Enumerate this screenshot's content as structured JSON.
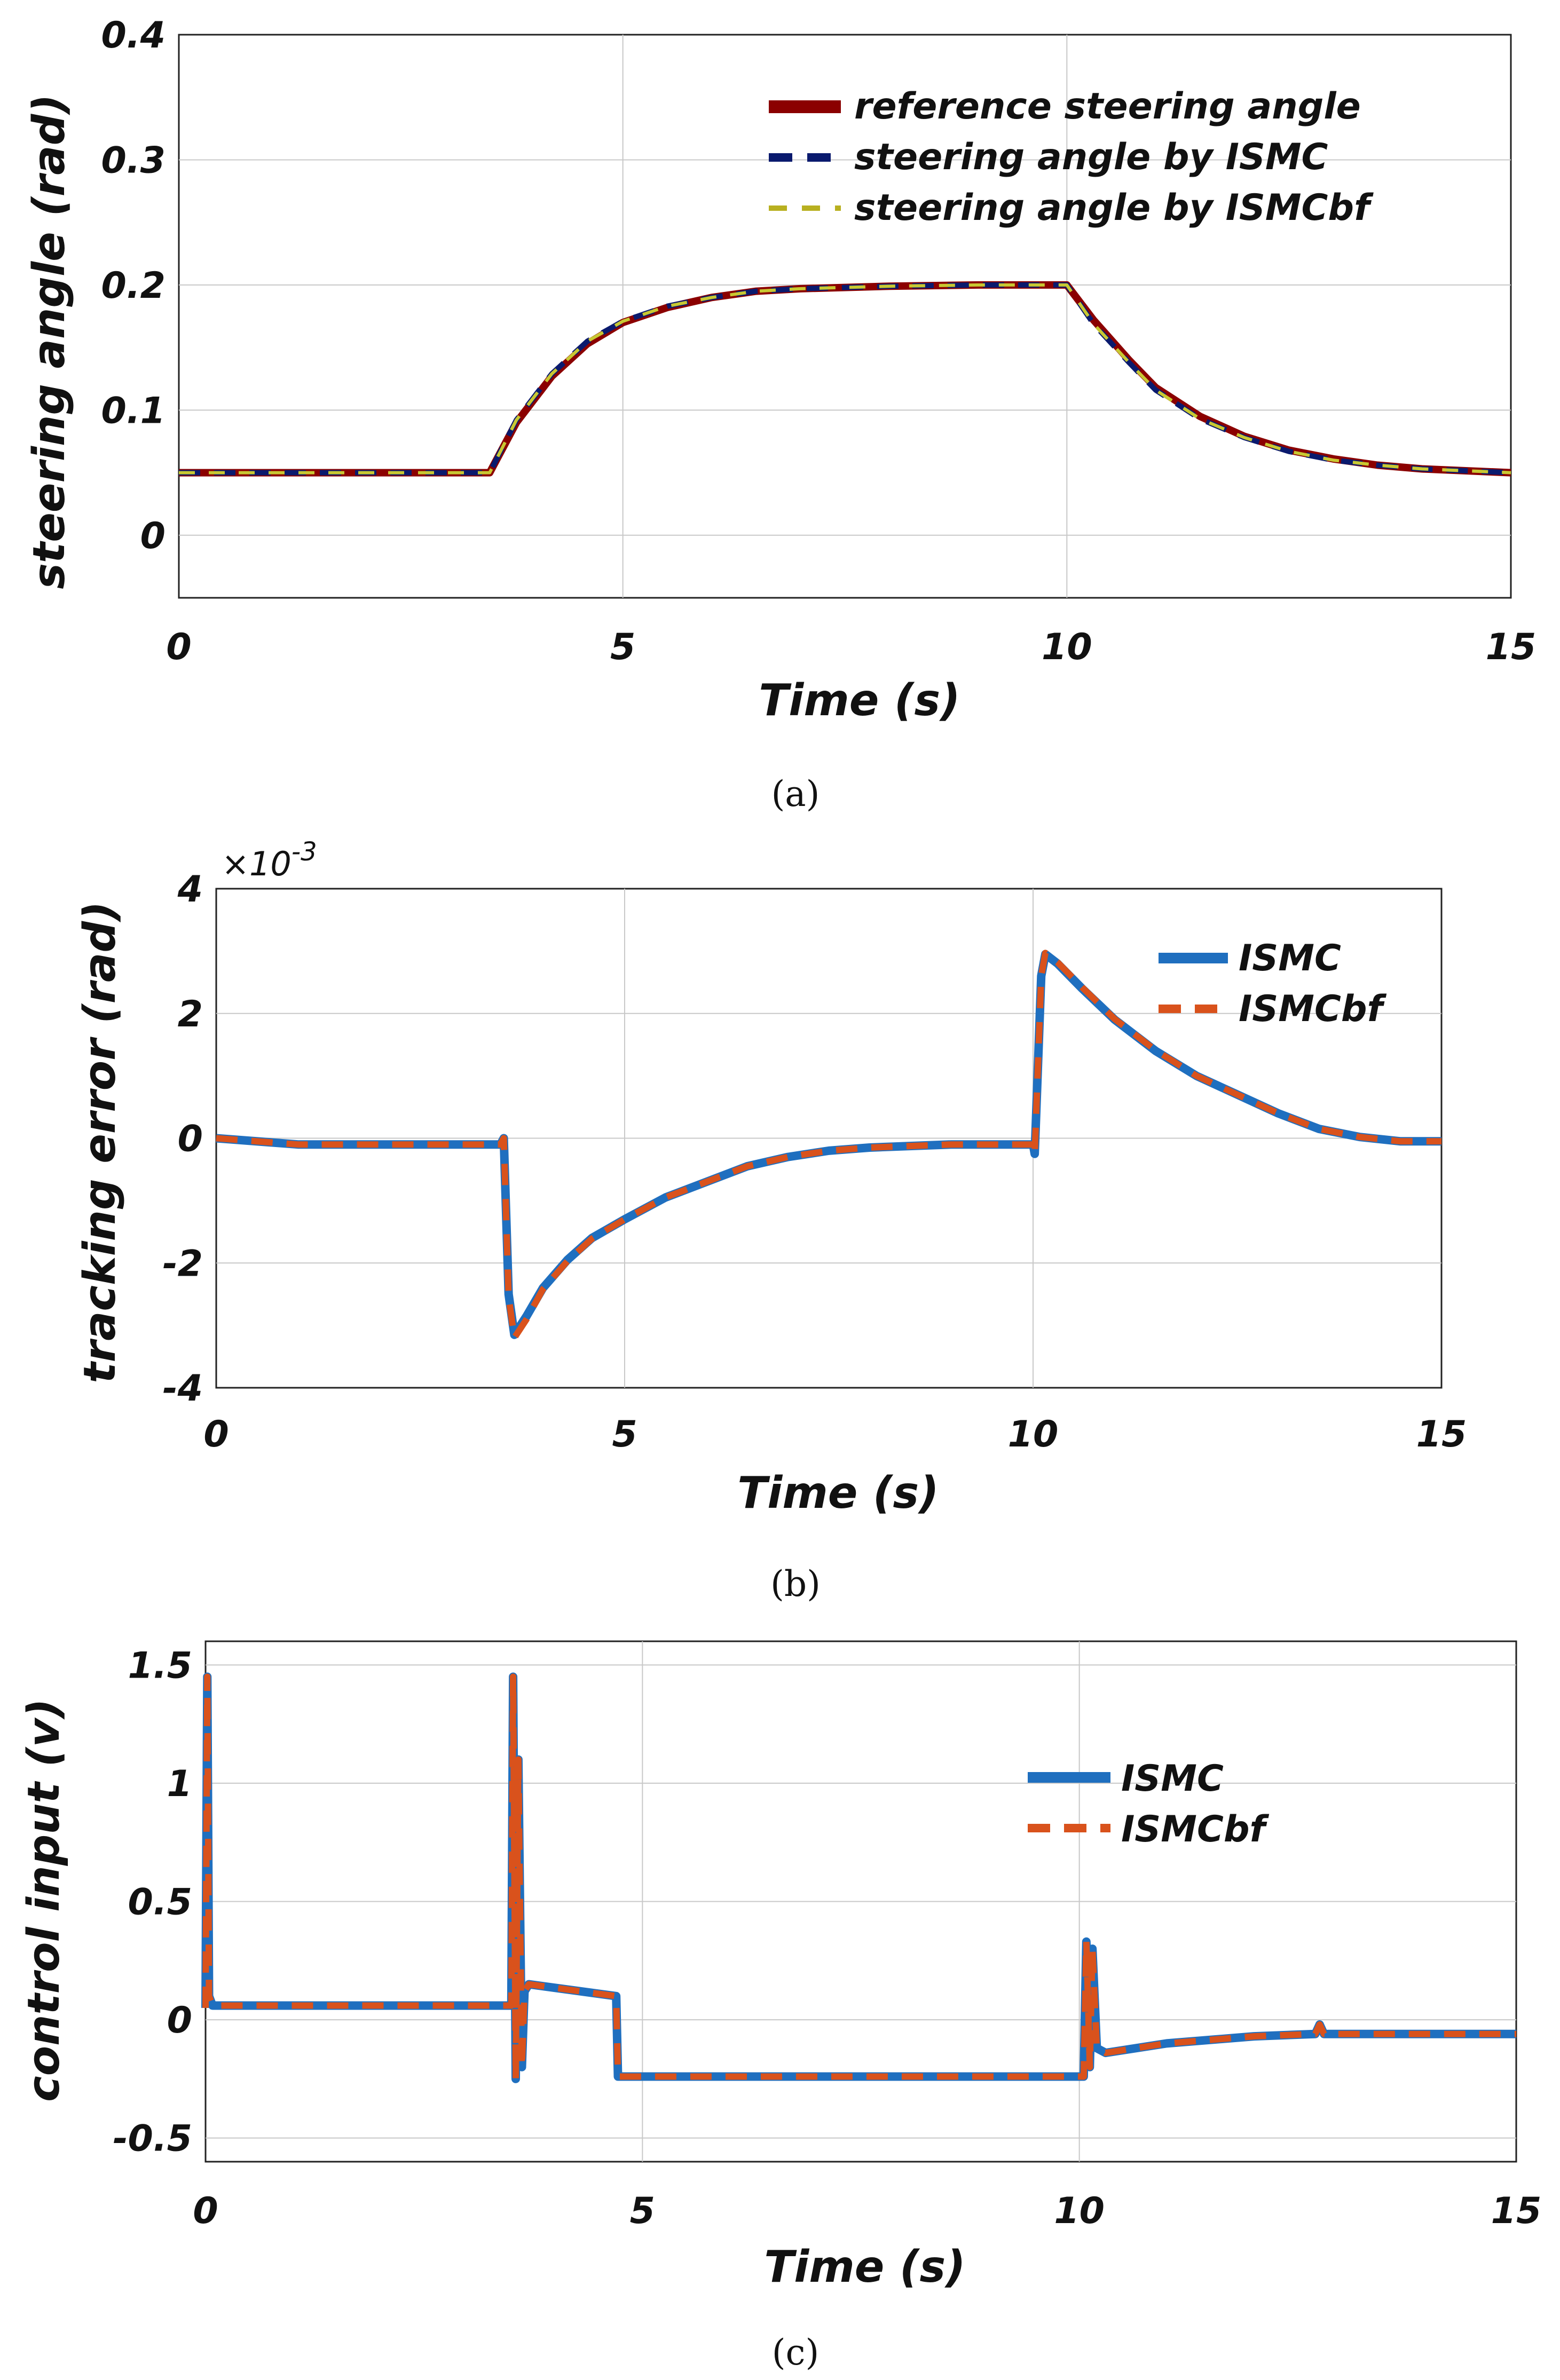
{
  "chart_data": [
    {
      "id": "a",
      "type": "line",
      "caption": "(a)",
      "xlabel": "Time (s)",
      "ylabel": "steering angle (rad)",
      "xlim": [
        0,
        15
      ],
      "ylim": [
        -0.05,
        0.4
      ],
      "xticks": [
        0,
        5,
        10,
        15
      ],
      "yticks": [
        0,
        0.1,
        0.2,
        0.3,
        0.4
      ],
      "yticklabels": [
        "0",
        "0.1",
        "0.2",
        "0.3",
        "0.4"
      ],
      "grid": true,
      "legend_position": "top-right",
      "series": [
        {
          "name": "reference steering angle",
          "color": "#8b0000",
          "style": "solid",
          "x": [
            0,
            3.5,
            3.8,
            4.2,
            4.6,
            5,
            5.5,
            6,
            6.5,
            7,
            8,
            9,
            10,
            10.3,
            10.7,
            11,
            11.5,
            12,
            12.5,
            13,
            13.5,
            14,
            15
          ],
          "y": [
            0.05,
            0.05,
            0.09,
            0.127,
            0.153,
            0.17,
            0.182,
            0.19,
            0.195,
            0.197,
            0.199,
            0.2,
            0.2,
            0.172,
            0.14,
            0.118,
            0.095,
            0.079,
            0.068,
            0.061,
            0.056,
            0.053,
            0.05
          ]
        },
        {
          "name": "steering angle by ISMC",
          "color": "#0a1a6e",
          "style": "dash",
          "x": [
            0,
            3.5,
            3.8,
            4.2,
            4.6,
            5,
            5.5,
            6,
            6.5,
            7,
            8,
            9,
            10,
            10.3,
            10.7,
            11,
            11.5,
            12,
            12.5,
            13,
            13.5,
            14,
            15
          ],
          "y": [
            0.05,
            0.05,
            0.092,
            0.129,
            0.155,
            0.171,
            0.183,
            0.19,
            0.195,
            0.197,
            0.199,
            0.2,
            0.2,
            0.169,
            0.138,
            0.116,
            0.093,
            0.078,
            0.067,
            0.06,
            0.056,
            0.053,
            0.05
          ]
        },
        {
          "name": "steering angle by ISMCbf",
          "color": "#c8c832",
          "style": "dash",
          "x": [
            0,
            3.5,
            3.8,
            4.2,
            4.6,
            5,
            5.5,
            6,
            6.5,
            7,
            8,
            9,
            10,
            10.3,
            10.7,
            11,
            11.5,
            12,
            12.5,
            13,
            13.5,
            14,
            15
          ],
          "y": [
            0.05,
            0.05,
            0.092,
            0.129,
            0.155,
            0.171,
            0.183,
            0.19,
            0.195,
            0.197,
            0.199,
            0.2,
            0.2,
            0.169,
            0.138,
            0.116,
            0.093,
            0.078,
            0.067,
            0.06,
            0.056,
            0.053,
            0.05
          ]
        }
      ]
    },
    {
      "id": "b",
      "type": "line",
      "caption": "(b)",
      "xlabel": "Time (s)",
      "ylabel": "tracking error (rad)",
      "scale_label": "×10",
      "scale_exponent": "-3",
      "xlim": [
        0,
        15
      ],
      "ylim": [
        -4,
        4
      ],
      "xticks": [
        0,
        5,
        10,
        15
      ],
      "yticks": [
        -4,
        -2,
        0,
        2,
        4
      ],
      "yticklabels": [
        "-4",
        "-2",
        "0",
        "2",
        "4"
      ],
      "grid": true,
      "legend_position": "top-right",
      "series": [
        {
          "name": "ISMC",
          "color": "#1f6fbf",
          "style": "solid",
          "x": [
            0,
            1,
            3.48,
            3.52,
            3.58,
            3.65,
            3.8,
            4.0,
            4.3,
            4.6,
            5,
            5.5,
            6,
            6.5,
            7,
            7.5,
            8,
            9,
            10.0,
            10.02,
            10.1,
            10.15,
            10.3,
            10.6,
            11,
            11.5,
            12,
            12.5,
            13,
            13.5,
            14,
            14.5,
            15
          ],
          "y": [
            0,
            -0.1,
            -0.1,
            0.0,
            -2.5,
            -3.15,
            -2.85,
            -2.4,
            -1.95,
            -1.6,
            -1.3,
            -0.95,
            -0.7,
            -0.45,
            -0.3,
            -0.2,
            -0.15,
            -0.1,
            -0.1,
            -0.25,
            2.6,
            2.95,
            2.8,
            2.4,
            1.9,
            1.4,
            1.0,
            0.7,
            0.4,
            0.15,
            0.02,
            -0.05,
            -0.05
          ]
        },
        {
          "name": "ISMCbf",
          "color": "#d9521c",
          "style": "dash",
          "x": [
            0,
            1,
            3.48,
            3.52,
            3.58,
            3.65,
            3.8,
            4.0,
            4.3,
            4.6,
            5,
            5.5,
            6,
            6.5,
            7,
            7.5,
            8,
            9,
            10.0,
            10.02,
            10.1,
            10.15,
            10.3,
            10.6,
            11,
            11.5,
            12,
            12.5,
            13,
            13.5,
            14,
            14.5,
            15
          ],
          "y": [
            0,
            -0.1,
            -0.1,
            0.0,
            -2.55,
            -3.2,
            -2.9,
            -2.42,
            -1.97,
            -1.61,
            -1.3,
            -0.95,
            -0.7,
            -0.45,
            -0.3,
            -0.2,
            -0.15,
            -0.1,
            -0.1,
            -0.25,
            2.6,
            2.97,
            2.82,
            2.42,
            1.91,
            1.41,
            1.0,
            0.7,
            0.4,
            0.15,
            0.02,
            -0.05,
            -0.05
          ]
        }
      ]
    },
    {
      "id": "c",
      "type": "line",
      "caption": "(c)",
      "xlabel": "Time (s)",
      "ylabel": "control input (v)",
      "xlim": [
        0,
        15
      ],
      "ylim": [
        -0.6,
        1.6
      ],
      "xticks": [
        0,
        5,
        10,
        15
      ],
      "yticks": [
        -0.5,
        0,
        0.5,
        1,
        1.5
      ],
      "yticklabels": [
        "-0.5",
        "0",
        "0.5",
        "1",
        "1.5"
      ],
      "grid": true,
      "legend_position": "center-right",
      "series": [
        {
          "name": "ISMC",
          "color": "#1f6fbf",
          "style": "solid",
          "x": [
            0,
            0.02,
            0.04,
            0.08,
            3.5,
            3.52,
            3.55,
            3.58,
            3.62,
            3.65,
            3.7,
            4.7,
            4.72,
            10.05,
            10.08,
            10.12,
            10.15,
            10.2,
            10.3,
            11,
            12,
            12.7,
            12.75,
            12.8,
            15
          ],
          "x_note": "",
          "y": [
            0.05,
            1.45,
            0.1,
            0.06,
            0.06,
            1.45,
            -0.25,
            1.1,
            -0.2,
            0.12,
            0.15,
            0.1,
            -0.24,
            -0.24,
            0.33,
            -0.2,
            0.3,
            -0.12,
            -0.14,
            -0.1,
            -0.07,
            -0.06,
            -0.02,
            -0.06,
            -0.06
          ]
        },
        {
          "name": "ISMCbf",
          "color": "#d9521c",
          "style": "dash",
          "x": [
            0,
            0.02,
            0.04,
            0.08,
            3.5,
            3.52,
            3.55,
            3.58,
            3.62,
            3.65,
            3.7,
            4.7,
            4.72,
            10.05,
            10.08,
            10.12,
            10.15,
            10.2,
            10.3,
            11,
            12,
            12.7,
            12.75,
            12.8,
            15
          ],
          "y": [
            0.05,
            1.45,
            0.1,
            0.06,
            0.06,
            1.45,
            -0.25,
            1.1,
            -0.2,
            0.12,
            0.15,
            0.1,
            -0.24,
            -0.24,
            0.33,
            -0.2,
            0.3,
            -0.12,
            -0.14,
            -0.1,
            -0.07,
            -0.06,
            -0.02,
            -0.06,
            -0.06
          ]
        }
      ]
    }
  ]
}
